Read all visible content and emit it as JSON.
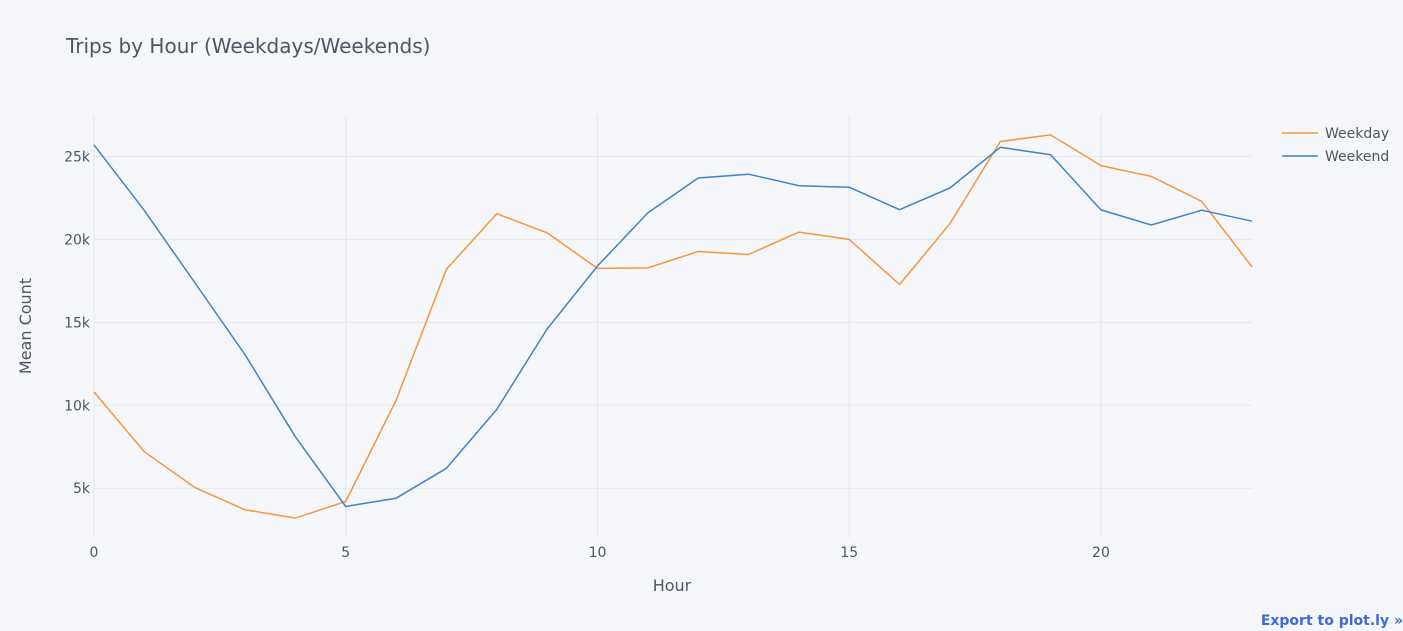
{
  "chart_data": {
    "type": "line",
    "title": "Trips by Hour (Weekdays/Weekends)",
    "xlabel": "Hour",
    "ylabel": "Mean Count",
    "xlim": [
      0,
      23
    ],
    "ylim": [
      2000,
      27500
    ],
    "x_ticks": [
      0,
      5,
      10,
      15,
      20
    ],
    "y_ticks": [
      5000,
      10000,
      15000,
      20000,
      25000
    ],
    "y_tick_labels": [
      "5k",
      "10k",
      "15k",
      "20k",
      "25k"
    ],
    "x": [
      0,
      1,
      2,
      3,
      4,
      5,
      6,
      7,
      8,
      9,
      10,
      11,
      12,
      13,
      14,
      15,
      16,
      17,
      18,
      19,
      20,
      21,
      22,
      23
    ],
    "series": [
      {
        "name": "Weekday",
        "color": "#f7963b",
        "values": [
          10800,
          7200,
          5050,
          3700,
          3200,
          4200,
          10300,
          18200,
          21550,
          20400,
          18250,
          18280,
          19270,
          19090,
          20440,
          20000,
          17280,
          20950,
          25900,
          26300,
          24450,
          23800,
          22300,
          18350
        ]
      },
      {
        "name": "Weekend",
        "color": "#3d85c6",
        "values": [
          25700,
          21750,
          17400,
          13050,
          8100,
          3900,
          4400,
          6200,
          9750,
          14600,
          18400,
          21600,
          23700,
          23930,
          23240,
          23150,
          21790,
          23100,
          25550,
          25100,
          21780,
          20870,
          21760,
          21100
        ]
      }
    ],
    "grid": true,
    "legend_position": "top-right"
  },
  "export_link": "Export to plot.ly »"
}
